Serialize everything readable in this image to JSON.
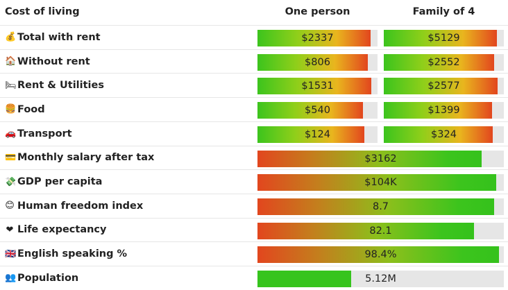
{
  "header": {
    "title": "Cost of living",
    "col_one": "One person",
    "col_family": "Family of 4"
  },
  "cost_rows": [
    {
      "emoji": "💰",
      "icon": "money-bag-icon",
      "label": "Total with rent",
      "one": {
        "text": "$2337",
        "fill": 0.94
      },
      "family": {
        "text": "$5129",
        "fill": 0.94
      }
    },
    {
      "emoji": "🏠",
      "icon": "house-icon",
      "label": "Without rent",
      "one": {
        "text": "$806",
        "fill": 0.92
      },
      "family": {
        "text": "$2552",
        "fill": 0.92
      }
    },
    {
      "emoji": "🛏",
      "icon": "bed-icon",
      "label": "Rent & Utilities",
      "one": {
        "text": "$1531",
        "fill": 0.95
      },
      "family": {
        "text": "$2577",
        "fill": 0.95
      }
    },
    {
      "emoji": "🍔",
      "icon": "food-icon",
      "label": "Food",
      "one": {
        "text": "$540",
        "fill": 0.88
      },
      "family": {
        "text": "$1399",
        "fill": 0.9
      }
    },
    {
      "emoji": "🚗",
      "icon": "car-icon",
      "label": "Transport",
      "one": {
        "text": "$124",
        "fill": 0.89
      },
      "family": {
        "text": "$324",
        "fill": 0.91
      }
    }
  ],
  "metric_rows": [
    {
      "emoji": "💳",
      "icon": "credit-card-icon",
      "label": "Monthly salary after tax",
      "value": "$3162",
      "fill": 0.91,
      "style": "good"
    },
    {
      "emoji": "💸",
      "icon": "money-wings-icon",
      "label": "GDP per capita",
      "value": "$104K",
      "fill": 0.97,
      "style": "good"
    },
    {
      "emoji": "😊",
      "icon": "smile-icon",
      "label": "Human freedom index",
      "value": "8.7",
      "fill": 0.96,
      "style": "good"
    },
    {
      "emoji": "❤",
      "icon": "heart-icon",
      "label": "Life expectancy",
      "value": "82.1",
      "fill": 0.88,
      "style": "good"
    },
    {
      "emoji": "🇬🇧",
      "icon": "flag-icon",
      "label": "English speaking %",
      "value": "98.4%",
      "fill": 0.98,
      "style": "good"
    },
    {
      "emoji": "👥",
      "icon": "people-icon",
      "label": "Population",
      "value": "5.12M",
      "fill": 0.38,
      "style": "plain"
    }
  ]
}
